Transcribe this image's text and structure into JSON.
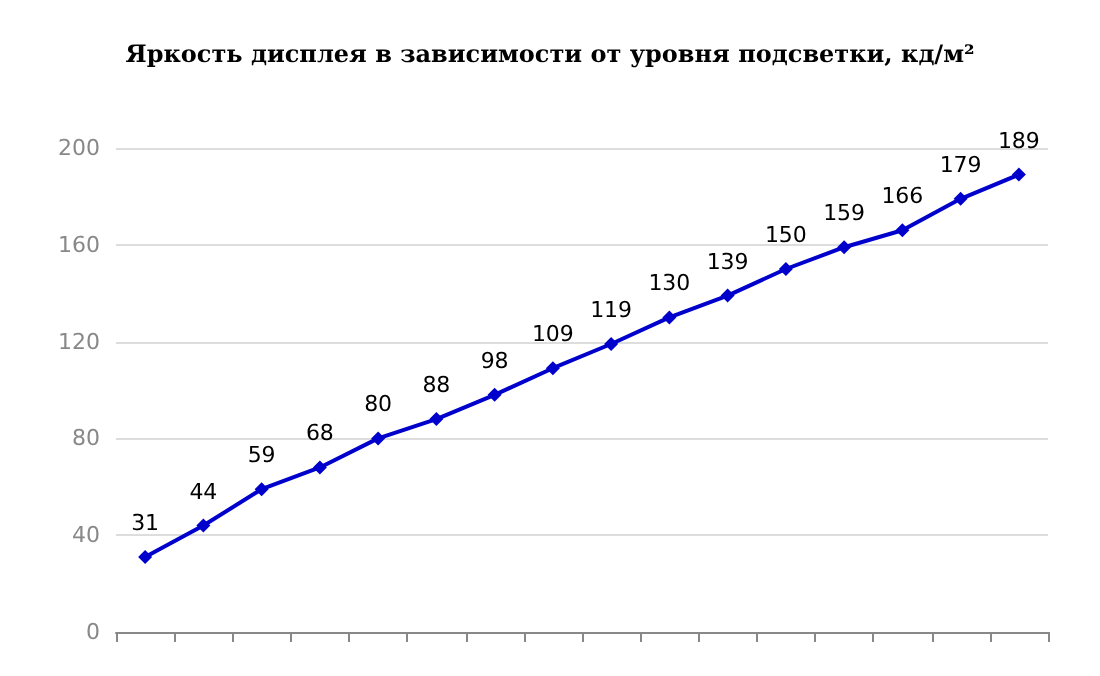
{
  "chart_data": {
    "type": "line",
    "title": "Яркость дисплея в зависимости от уровня подсветки, кд/м²",
    "categories": [
      null,
      null,
      null,
      null,
      null,
      null,
      null,
      null,
      null,
      null,
      null,
      null,
      null,
      null,
      null,
      null
    ],
    "series": [
      {
        "color": "#0000cc",
        "values": [
          31,
          44,
          59,
          68,
          80,
          88,
          98,
          109,
          119,
          130,
          139,
          150,
          159,
          166,
          179,
          189
        ]
      }
    ],
    "ylim": [
      0,
      200
    ],
    "yticks": [
      0,
      40,
      80,
      120,
      160,
      200
    ],
    "grid": "y",
    "marker": "diamond",
    "line_style": "solid",
    "data_labels": true
  }
}
